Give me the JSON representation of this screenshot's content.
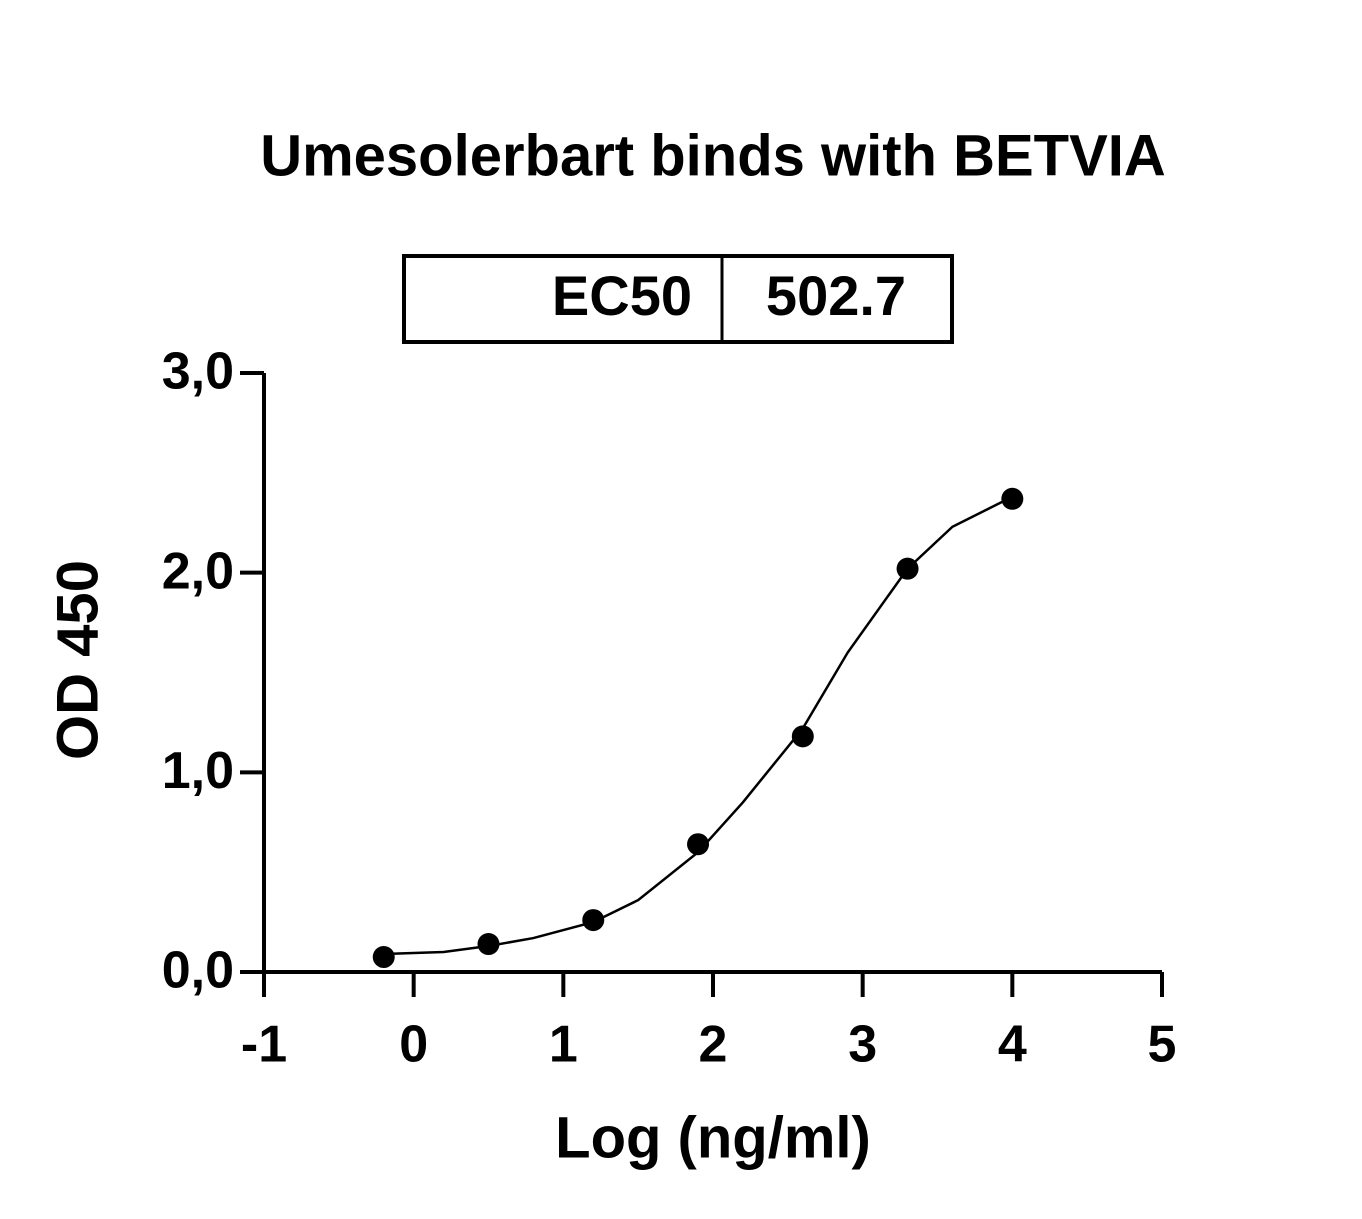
{
  "chart_data": {
    "type": "scatter",
    "title": "Umesolerbart binds with BETVIA",
    "xlabel": "Log (ng/ml)",
    "ylabel": "OD 450",
    "x": [
      -0.2,
      0.5,
      1.2,
      1.9,
      2.6,
      3.3,
      4.0
    ],
    "values": [
      0.075,
      0.14,
      0.26,
      0.64,
      1.18,
      2.02,
      2.37
    ],
    "color": "#000000",
    "fit": {
      "x": [
        -0.2,
        0.2,
        0.5,
        0.8,
        1.2,
        1.5,
        1.9,
        2.2,
        2.6,
        2.9,
        3.3,
        3.6,
        4.0
      ],
      "values": [
        0.09,
        0.1,
        0.13,
        0.17,
        0.25,
        0.36,
        0.6,
        0.85,
        1.22,
        1.6,
        2.02,
        2.23,
        2.38
      ]
    },
    "xlim": [
      -1,
      5
    ],
    "xticks": [
      -1,
      0,
      1,
      2,
      3,
      4,
      5
    ],
    "ylim": [
      0,
      3
    ],
    "yticks": [
      {
        "value": 0,
        "label": "0,0"
      },
      {
        "value": 1,
        "label": "1,0"
      },
      {
        "value": 2,
        "label": "2,0"
      },
      {
        "value": 3,
        "label": "3,0"
      }
    ],
    "grid": false,
    "table": {
      "label": "EC50",
      "value": 502.7
    }
  }
}
